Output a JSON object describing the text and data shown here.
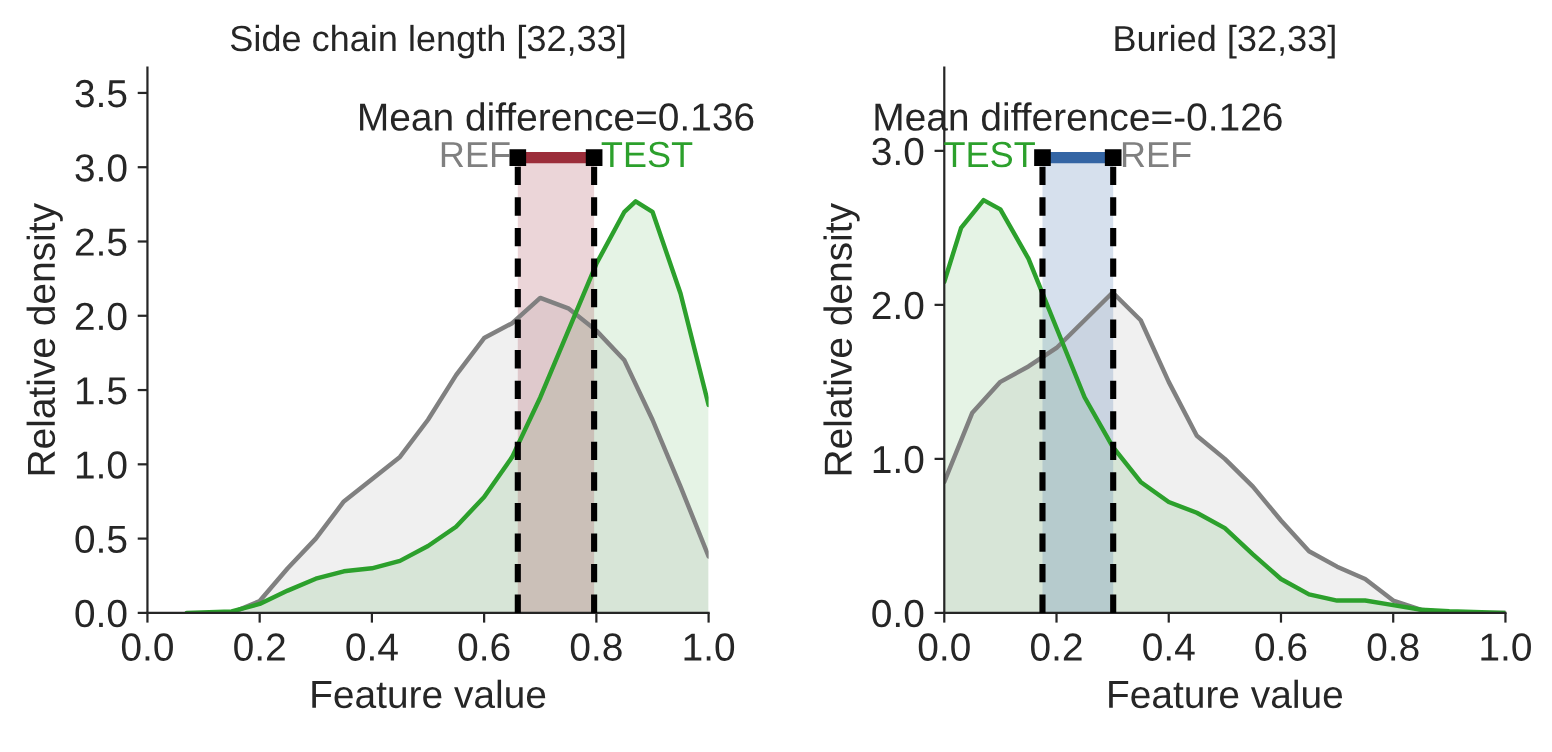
{
  "chart_data": [
    {
      "type": "area",
      "title": "Side chain length [32,33]",
      "xlabel": "Feature value",
      "ylabel": "Relative density",
      "series": [
        {
          "name": "REF",
          "color": "#808080",
          "x": [
            0.15,
            0.2,
            0.25,
            0.3,
            0.35,
            0.4,
            0.45,
            0.5,
            0.55,
            0.6,
            0.65,
            0.7,
            0.75,
            0.8,
            0.85,
            0.9,
            0.95,
            1.0
          ],
          "values": [
            0,
            0.08,
            0.3,
            0.5,
            0.75,
            0.9,
            1.05,
            1.3,
            1.6,
            1.85,
            1.95,
            2.12,
            2.05,
            1.9,
            1.7,
            1.3,
            0.85,
            0.38
          ]
        },
        {
          "name": "TEST",
          "color": "#2ca02c",
          "x": [
            0.07,
            0.15,
            0.2,
            0.25,
            0.3,
            0.35,
            0.4,
            0.45,
            0.5,
            0.55,
            0.6,
            0.65,
            0.7,
            0.75,
            0.8,
            0.85,
            0.87,
            0.9,
            0.95,
            1.0
          ],
          "values": [
            0,
            0.01,
            0.06,
            0.15,
            0.23,
            0.28,
            0.3,
            0.35,
            0.45,
            0.58,
            0.78,
            1.05,
            1.45,
            1.9,
            2.35,
            2.7,
            2.77,
            2.7,
            2.15,
            1.4
          ]
        }
      ],
      "ref_lines": [
        {
          "axis": "x",
          "value": 0.66,
          "color": "#000000",
          "line_style": "dashed"
        },
        {
          "axis": "x",
          "value": 0.796,
          "color": "#000000",
          "line_style": "dashed"
        }
      ],
      "bands": [
        {
          "axis": "x",
          "from": 0.66,
          "to": 0.796,
          "color": "#9b2d3a"
        }
      ],
      "annotations": [
        "Mean difference=0.136"
      ],
      "xlim": [
        0,
        1
      ],
      "ylim": [
        0,
        3.67
      ],
      "xticks": [
        {
          "value": 0,
          "label": "0.0"
        },
        {
          "value": 0.2,
          "label": "0.2"
        },
        {
          "value": 0.4,
          "label": "0.4"
        },
        {
          "value": 0.6,
          "label": "0.6"
        },
        {
          "value": 0.8,
          "label": "0.8"
        },
        {
          "value": 1,
          "label": "1.0"
        }
      ],
      "yticks": [
        {
          "value": 0,
          "label": "0.0"
        },
        {
          "value": 0.5,
          "label": "0.5"
        },
        {
          "value": 1,
          "label": "1.0"
        },
        {
          "value": 1.5,
          "label": "1.5"
        },
        {
          "value": 2,
          "label": "2.0"
        },
        {
          "value": 2.5,
          "label": "2.5"
        },
        {
          "value": 3,
          "label": "3.0"
        },
        {
          "value": 3.5,
          "label": "3.5"
        }
      ],
      "grid": false,
      "legend": false
    },
    {
      "type": "area",
      "title": "Buried [32,33]",
      "xlabel": "Feature value",
      "ylabel": "Relative density",
      "series": [
        {
          "name": "REF",
          "color": "#808080",
          "x": [
            0,
            0.05,
            0.1,
            0.15,
            0.2,
            0.25,
            0.3,
            0.35,
            0.4,
            0.45,
            0.5,
            0.55,
            0.6,
            0.65,
            0.7,
            0.75,
            0.8,
            0.85,
            0.9,
            1.0
          ],
          "values": [
            0.85,
            1.3,
            1.5,
            1.6,
            1.72,
            1.9,
            2.08,
            1.9,
            1.5,
            1.15,
            1.0,
            0.82,
            0.6,
            0.4,
            0.3,
            0.22,
            0.08,
            0.02,
            0,
            0
          ]
        },
        {
          "name": "TEST",
          "color": "#2ca02c",
          "x": [
            0,
            0.03,
            0.07,
            0.1,
            0.15,
            0.2,
            0.25,
            0.3,
            0.35,
            0.4,
            0.45,
            0.5,
            0.55,
            0.6,
            0.65,
            0.7,
            0.75,
            0.8,
            0.85,
            0.9,
            1.0
          ],
          "values": [
            2.15,
            2.5,
            2.68,
            2.62,
            2.3,
            1.85,
            1.4,
            1.08,
            0.85,
            0.72,
            0.65,
            0.55,
            0.38,
            0.22,
            0.12,
            0.08,
            0.08,
            0.05,
            0.02,
            0.01,
            0
          ]
        }
      ],
      "ref_lines": [
        {
          "axis": "x",
          "value": 0.301,
          "color": "#000000",
          "line_style": "dashed"
        },
        {
          "axis": "x",
          "value": 0.175,
          "color": "#000000",
          "line_style": "dashed"
        }
      ],
      "bands": [
        {
          "axis": "x",
          "from": 0.175,
          "to": 0.301,
          "color": "#3465a4"
        }
      ],
      "annotations": [
        "Mean difference=-0.126"
      ],
      "xlim": [
        0,
        1
      ],
      "ylim": [
        0,
        3.54
      ],
      "xticks": [
        {
          "value": 0,
          "label": "0.0"
        },
        {
          "value": 0.2,
          "label": "0.2"
        },
        {
          "value": 0.4,
          "label": "0.4"
        },
        {
          "value": 0.6,
          "label": "0.6"
        },
        {
          "value": 0.8,
          "label": "0.8"
        },
        {
          "value": 1,
          "label": "1.0"
        }
      ],
      "yticks": [
        {
          "value": 0,
          "label": "0.0"
        },
        {
          "value": 1,
          "label": "1.0"
        },
        {
          "value": 2,
          "label": "2.0"
        },
        {
          "value": 3,
          "label": "3.0"
        }
      ],
      "grid": false,
      "legend": false
    }
  ]
}
